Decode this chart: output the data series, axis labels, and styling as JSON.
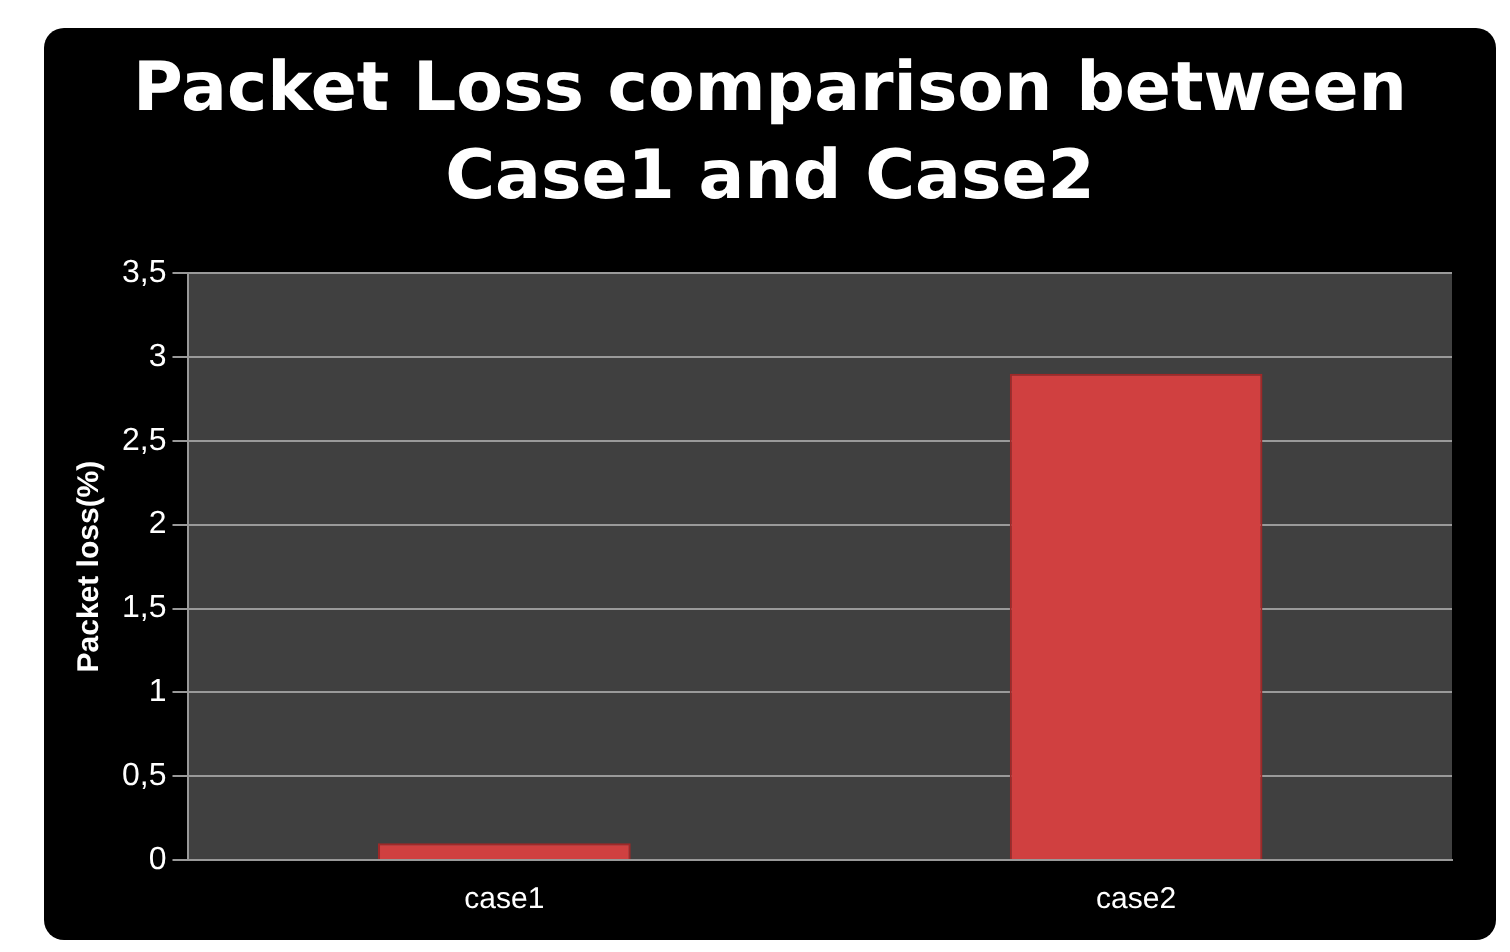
{
  "chart_data": {
    "type": "bar",
    "title": "Packet Loss comparison between Case1 and Case2",
    "ylabel": "Packet loss(%)",
    "categories": [
      "case1",
      "case2"
    ],
    "values": [
      0.1,
      2.9
    ],
    "color": "#d04040",
    "ylim": [
      0,
      3.5
    ],
    "yticks": [
      0,
      {
        "value": 0.5,
        "label": "0,5"
      },
      1,
      {
        "value": 1.5,
        "label": "1,5"
      },
      2,
      {
        "value": 2.5,
        "label": "2,5"
      },
      3,
      {
        "value": 3.5,
        "label": "3,5"
      }
    ],
    "grid": "y",
    "legend": false
  }
}
